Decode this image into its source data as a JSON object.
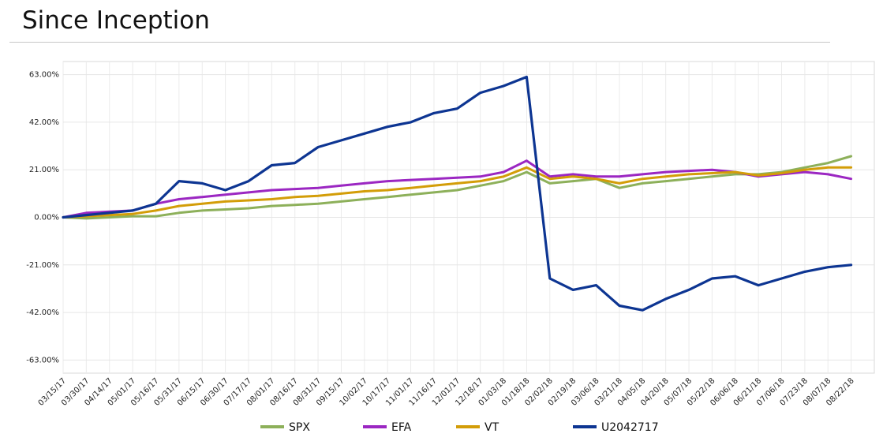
{
  "page": {
    "title": "Since Inception"
  },
  "chart_data": {
    "type": "line",
    "ylim": [
      -66,
      66
    ],
    "yticks": [
      63,
      42,
      21,
      0,
      -21,
      -42,
      -63
    ],
    "ytick_labels": [
      "63.00%",
      "42.00%",
      "21.00%",
      "0.00%",
      "-21.00%",
      "-42.00%",
      "-63.00%"
    ],
    "x_labels": [
      "03/15/17",
      "03/30/17",
      "04/14/17",
      "05/01/17",
      "05/16/17",
      "05/31/17",
      "06/15/17",
      "06/30/17",
      "07/17/17",
      "08/01/17",
      "08/16/17",
      "08/31/17",
      "09/15/17",
      "10/02/17",
      "10/17/17",
      "11/01/17",
      "11/16/17",
      "12/01/17",
      "12/18/17",
      "01/03/18",
      "01/18/18",
      "02/02/18",
      "02/19/18",
      "03/06/18",
      "03/21/18",
      "04/05/18",
      "04/20/18",
      "05/07/18",
      "05/22/18",
      "06/06/18",
      "06/21/18",
      "07/06/18",
      "07/23/18",
      "08/07/18",
      "08/22/18"
    ],
    "grid": true,
    "legend_position": "bottom",
    "series": [
      {
        "name": "SPX",
        "color": "#8db05a",
        "values": [
          0,
          -0.5,
          0,
          0.5,
          0.5,
          2,
          3,
          3.5,
          4,
          5,
          5.5,
          6,
          7,
          8,
          9,
          10,
          11,
          12,
          14,
          16,
          20,
          15,
          16,
          17,
          13,
          15,
          16,
          17,
          18,
          19,
          19,
          20,
          22,
          24,
          27
        ]
      },
      {
        "name": "EFA",
        "color": "#9b27c2",
        "values": [
          0,
          2,
          2.5,
          3,
          6,
          8,
          9,
          10,
          11,
          12,
          12.5,
          13,
          14,
          15,
          16,
          16.5,
          17,
          17.5,
          18,
          20,
          25,
          18,
          19,
          18,
          18,
          19,
          20,
          20.5,
          21,
          20,
          18,
          19,
          20,
          19,
          17
        ]
      },
      {
        "name": "VT",
        "color": "#d39d08",
        "values": [
          0,
          0.5,
          1,
          1.5,
          3,
          5,
          6,
          7,
          7.5,
          8,
          9,
          9.5,
          10.5,
          11.5,
          12,
          13,
          14,
          15,
          16,
          18,
          22,
          17,
          18,
          17,
          15,
          17,
          18,
          19,
          19.5,
          20,
          18.5,
          19.5,
          21,
          22,
          22
        ]
      },
      {
        "name": "U2042717",
        "color": "#0d3592",
        "values": [
          0,
          1,
          2,
          3,
          6,
          16,
          15,
          12,
          16,
          23,
          24,
          31,
          34,
          37,
          40,
          42,
          46,
          48,
          55,
          58,
          62,
          -27,
          -32,
          -30,
          -39,
          -41,
          -36,
          -32,
          -27,
          -26,
          -30,
          -27,
          -24,
          -22,
          -21
        ]
      }
    ]
  }
}
